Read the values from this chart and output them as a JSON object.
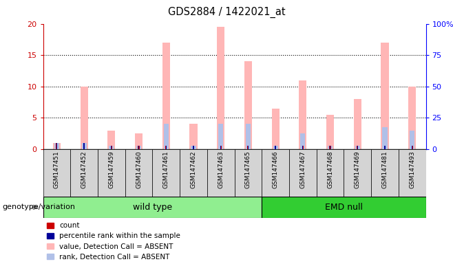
{
  "title": "GDS2884 / 1422021_at",
  "samples": [
    "GSM147451",
    "GSM147452",
    "GSM147459",
    "GSM147460",
    "GSM147461",
    "GSM147462",
    "GSM147463",
    "GSM147465",
    "GSM147466",
    "GSM147467",
    "GSM147468",
    "GSM147469",
    "GSM147481",
    "GSM147493"
  ],
  "count_values": [
    1.0,
    1.0,
    0.5,
    0.5,
    0.5,
    0.5,
    0.5,
    0.5,
    0.5,
    0.5,
    0.5,
    0.5,
    0.5,
    0.5
  ],
  "percentile_values": [
    1.0,
    1.0,
    0.5,
    0.5,
    0.5,
    0.5,
    0.5,
    0.5,
    0.5,
    0.5,
    0.5,
    0.5,
    0.5,
    0.5
  ],
  "absent_value_values": [
    1.0,
    10.0,
    3.0,
    2.5,
    17.0,
    4.0,
    19.5,
    14.0,
    6.5,
    11.0,
    5.5,
    8.0,
    17.0,
    10.0
  ],
  "absent_rank_values": [
    1.0,
    1.0,
    0.5,
    0.5,
    4.0,
    0.5,
    4.0,
    4.0,
    0.5,
    2.5,
    0.5,
    0.5,
    3.5,
    3.0
  ],
  "ylim_left": [
    0,
    20
  ],
  "ylim_right": [
    0,
    100
  ],
  "yticks_left": [
    0,
    5,
    10,
    15,
    20
  ],
  "ytick_labels_right": [
    "0",
    "25",
    "50",
    "75",
    "100%"
  ],
  "wild_type_indices": [
    0,
    7
  ],
  "emd_null_indices": [
    8,
    13
  ],
  "wild_type_label": "wild type",
  "emd_null_label": "EMD null",
  "genotype_label": "genotype/variation",
  "bar_bg_color": "#d4d4d4",
  "wild_type_color": "#90ee90",
  "emd_null_color": "#32cd32",
  "color_count": "#cc0000",
  "color_percentile": "#000099",
  "color_absent_value": "#ffb6b6",
  "color_absent_rank": "#b0c0e8",
  "legend_items": [
    "count",
    "percentile rank within the sample",
    "value, Detection Call = ABSENT",
    "rank, Detection Call = ABSENT"
  ],
  "legend_colors": [
    "#cc0000",
    "#000099",
    "#ffb6b6",
    "#b0c0e8"
  ]
}
